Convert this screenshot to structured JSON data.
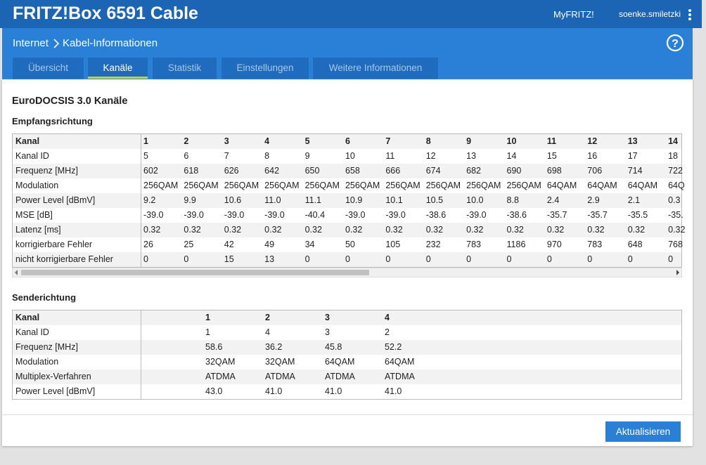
{
  "header": {
    "title": "FRITZ!Box 6591 Cable",
    "link": "MyFRITZ!",
    "user": "soenke.smiletzki"
  },
  "breadcrumb": [
    "Internet",
    "Kabel-Informationen"
  ],
  "help": "?",
  "tabs": [
    "Übersicht",
    "Kanäle",
    "Statistik",
    "Einstellungen",
    "Weitere Informationen"
  ],
  "active_tab": 1,
  "section_title": "EuroDOCSIS 3.0 Kanäle",
  "downstream": {
    "title": "Empfangsrichtung",
    "header": [
      "Kanal",
      "1",
      "2",
      "3",
      "4",
      "5",
      "6",
      "7",
      "8",
      "9",
      "10",
      "11",
      "12",
      "13",
      "14"
    ],
    "rows": [
      [
        "Kanal ID",
        "5",
        "6",
        "7",
        "8",
        "9",
        "10",
        "11",
        "12",
        "13",
        "14",
        "15",
        "16",
        "17",
        "18"
      ],
      [
        "Frequenz [MHz]",
        "602",
        "618",
        "626",
        "642",
        "650",
        "658",
        "666",
        "674",
        "682",
        "690",
        "698",
        "706",
        "714",
        "722"
      ],
      [
        "Modulation",
        "256QAM",
        "256QAM",
        "256QAM",
        "256QAM",
        "256QAM",
        "256QAM",
        "256QAM",
        "256QAM",
        "256QAM",
        "256QAM",
        "64QAM",
        "64QAM",
        "64QAM",
        "64Q"
      ],
      [
        "Power Level [dBmV]",
        "9.2",
        "9.9",
        "10.6",
        "11.0",
        "11.1",
        "10.9",
        "10.1",
        "10.5",
        "10.0",
        "8.8",
        "2.4",
        "2.9",
        "2.1",
        "0.3"
      ],
      [
        "MSE [dB]",
        "-39.0",
        "-39.0",
        "-39.0",
        "-39.0",
        "-40.4",
        "-39.0",
        "-39.0",
        "-38.6",
        "-39.0",
        "-38.6",
        "-35.7",
        "-35.7",
        "-35.5",
        "-35."
      ],
      [
        "Latenz [ms]",
        "0.32",
        "0.32",
        "0.32",
        "0.32",
        "0.32",
        "0.32",
        "0.32",
        "0.32",
        "0.32",
        "0.32",
        "0.32",
        "0.32",
        "0.32",
        "0.32"
      ],
      [
        "korrigierbare Fehler",
        "26",
        "25",
        "42",
        "49",
        "34",
        "50",
        "105",
        "232",
        "783",
        "1186",
        "970",
        "783",
        "648",
        "768"
      ],
      [
        "nicht korrigierbare Fehler",
        "0",
        "0",
        "15",
        "13",
        "0",
        "0",
        "0",
        "0",
        "0",
        "0",
        "0",
        "0",
        "0",
        "0"
      ]
    ]
  },
  "upstream": {
    "title": "Senderichtung",
    "header": [
      "Kanal",
      "1",
      "2",
      "3",
      "4"
    ],
    "rows": [
      [
        "Kanal ID",
        "1",
        "4",
        "3",
        "2"
      ],
      [
        "Frequenz [MHz]",
        "58.6",
        "36.2",
        "45.8",
        "52.2"
      ],
      [
        "Modulation",
        "32QAM",
        "32QAM",
        "64QAM",
        "64QAM"
      ],
      [
        "Multiplex-Verfahren",
        "ATDMA",
        "ATDMA",
        "ATDMA",
        "ATDMA"
      ],
      [
        "Power Level [dBmV]",
        "43.0",
        "41.0",
        "41.0",
        "41.0"
      ]
    ]
  },
  "button": "Aktualisieren"
}
